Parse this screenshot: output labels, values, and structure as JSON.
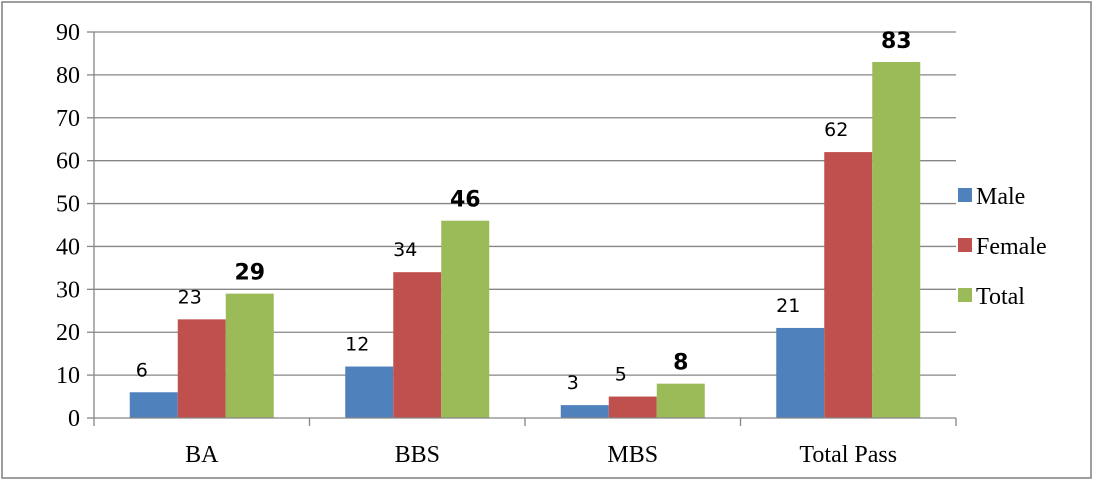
{
  "chart_data": {
    "type": "bar",
    "categories": [
      "BA",
      "BBS",
      "MBS",
      "Total Pass"
    ],
    "series": [
      {
        "name": "Male",
        "values": [
          6,
          12,
          3,
          21
        ],
        "color": "#4f81bd"
      },
      {
        "name": "Female",
        "values": [
          23,
          34,
          5,
          62
        ],
        "color": "#c0504d"
      },
      {
        "name": "Total",
        "values": [
          29,
          46,
          8,
          83
        ],
        "color": "#9bbb59"
      }
    ],
    "ylim": [
      0,
      90
    ],
    "yticks": [
      0,
      10,
      20,
      30,
      40,
      50,
      60,
      70,
      80,
      90
    ],
    "grid": true,
    "legend": "right",
    "bold_series": "Total"
  }
}
